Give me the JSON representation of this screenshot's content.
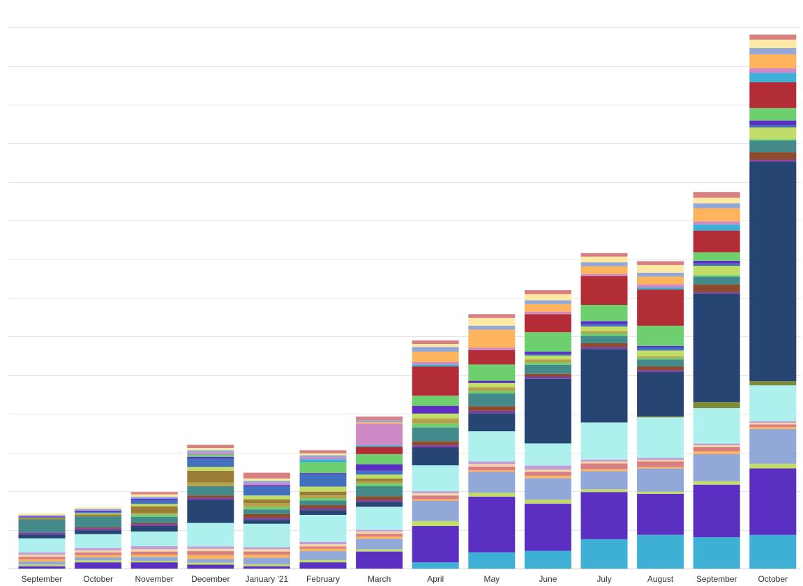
{
  "chart_data": {
    "type": "bar",
    "stacked": true,
    "grid": true,
    "legend": "none",
    "title": "",
    "xlabel": "",
    "ylabel": "",
    "categories": [
      "September",
      "October",
      "November",
      "December",
      "January '21",
      "February",
      "March",
      "April",
      "May",
      "June",
      "July",
      "August",
      "September",
      "October"
    ],
    "ylim": [
      0,
      14.2
    ],
    "series": [
      {
        "color": "#3eb0d5",
        "values": [
          0,
          0,
          0,
          0,
          0,
          0,
          0,
          0.16,
          0.42,
          0.46,
          0.76,
          0.87,
          0.81,
          0.87
        ]
      },
      {
        "color": "#5a2fc2",
        "values": [
          0.06,
          0.16,
          0.16,
          0.1,
          0.06,
          0.16,
          0.44,
          0.94,
          1.44,
          1.22,
          1.22,
          1.06,
          1.36,
          1.72
        ]
      },
      {
        "color": "#c2dd67",
        "values": [
          0.04,
          0.05,
          0.04,
          0.05,
          0.05,
          0.06,
          0.06,
          0.13,
          0.1,
          0.1,
          0.07,
          0.06,
          0.09,
          0.12
        ]
      },
      {
        "color": "#92a8d8",
        "values": [
          0.08,
          0.08,
          0.1,
          0.1,
          0.17,
          0.23,
          0.27,
          0.52,
          0.54,
          0.56,
          0.47,
          0.6,
          0.7,
          0.9
        ]
      },
      {
        "color": "#fdb45c",
        "values": [
          0.06,
          0.06,
          0.06,
          0.1,
          0.08,
          0.06,
          0.06,
          0.04,
          0.04,
          0.06,
          0.05,
          0.04,
          0.07,
          0.05
        ]
      },
      {
        "color": "#d87f82",
        "values": [
          0.07,
          0.07,
          0.08,
          0.1,
          0.08,
          0.06,
          0.07,
          0.1,
          0.1,
          0.1,
          0.15,
          0.14,
          0.11,
          0.07
        ]
      },
      {
        "color": "#f3d7a7",
        "values": [
          0.05,
          0.05,
          0.06,
          0.06,
          0.06,
          0.06,
          0.06,
          0.06,
          0.06,
          0.06,
          0.05,
          0.04,
          0.05,
          0.04
        ]
      },
      {
        "color": "#c49bd7",
        "values": [
          0.06,
          0.06,
          0.08,
          0.06,
          0.05,
          0.06,
          0.04,
          0.05,
          0.07,
          0.1,
          0.05,
          0.05,
          0.04,
          0.04
        ]
      },
      {
        "color": "#aef0ee",
        "values": [
          0.36,
          0.36,
          0.38,
          0.61,
          0.61,
          0.7,
          0.6,
          0.67,
          0.78,
          0.58,
          0.96,
          1.05,
          0.92,
          0.93
        ]
      },
      {
        "color": "#7d8c3b",
        "values": [
          0,
          0,
          0,
          0,
          0,
          0,
          0,
          0,
          0,
          0,
          0,
          0.03,
          0.16,
          0.11
        ]
      },
      {
        "color": "#264573",
        "values": [
          0.1,
          0.1,
          0.14,
          0.6,
          0.1,
          0.12,
          0.12,
          0.46,
          0.47,
          1.67,
          1.9,
          1.14,
          2.8,
          5.67
        ]
      },
      {
        "color": "#7c3fa6",
        "values": [
          0.05,
          0.05,
          0.05,
          0.05,
          0.05,
          0.05,
          0.05,
          0.06,
          0.06,
          0.06,
          0.05,
          0.05,
          0.04,
          0.05
        ]
      },
      {
        "color": "#8d4a2c",
        "values": [
          0,
          0.03,
          0.03,
          0.06,
          0.1,
          0.08,
          0.1,
          0.1,
          0.12,
          0.07,
          0.1,
          0.1,
          0.2,
          0.2
        ]
      },
      {
        "color": "#448a8a",
        "values": [
          0.34,
          0.28,
          0.16,
          0.24,
          0.12,
          0.12,
          0.26,
          0.36,
          0.33,
          0.23,
          0.19,
          0.18,
          0.2,
          0.3
        ]
      },
      {
        "color": "#6ecf6e",
        "values": [
          0,
          0,
          0.06,
          0,
          0.06,
          0.06,
          0.07,
          0.1,
          0.06,
          0.06,
          0.06,
          0.04,
          0.04,
          0.04
        ]
      },
      {
        "color": "#b5a14a",
        "values": [
          0,
          0,
          0.04,
          0.1,
          0.1,
          0.07,
          0.06,
          0.13,
          0.1,
          0.08,
          0.06,
          0.04,
          0,
          0
        ]
      },
      {
        "color": "#9a7c35",
        "values": [
          0.03,
          0.05,
          0.17,
          0.3,
          0.1,
          0.1,
          0.07,
          0,
          0,
          0,
          0,
          0,
          0,
          0
        ]
      },
      {
        "color": "#c2dd67",
        "values": [
          0.02,
          0.03,
          0.06,
          0.1,
          0.1,
          0.13,
          0.1,
          0.13,
          0.11,
          0.1,
          0.12,
          0.15,
          0.24,
          0.3
        ]
      },
      {
        "color": "#4470c0",
        "values": [
          0,
          0.03,
          0.1,
          0.22,
          0.24,
          0.32,
          0.1,
          0,
          0,
          0.04,
          0.06,
          0.08,
          0.06,
          0.06
        ]
      },
      {
        "color": "#5a2fc2",
        "values": [
          0.03,
          0.03,
          0.04,
          0.04,
          0.03,
          0.03,
          0.17,
          0.2,
          0.06,
          0.06,
          0.08,
          0.04,
          0.07,
          0.12
        ]
      },
      {
        "color": "#6ecf6e",
        "values": [
          0,
          0,
          0,
          0.06,
          0,
          0.28,
          0.26,
          0.26,
          0.42,
          0.5,
          0.42,
          0.52,
          0.22,
          0.32
        ]
      },
      {
        "color": "#b32d37",
        "values": [
          0,
          0,
          0,
          0,
          0,
          0,
          0.19,
          0.76,
          0.37,
          0.47,
          0.74,
          0.94,
          0.56,
          0.67
        ]
      },
      {
        "color": "#3eb0d5",
        "values": [
          0,
          0,
          0,
          0,
          0,
          0.08,
          0.04,
          0.05,
          0,
          0,
          0,
          0.05,
          0.16,
          0.24
        ]
      },
      {
        "color": "#cf89c7",
        "values": [
          0,
          0,
          0,
          0.05,
          0.05,
          0.05,
          0.56,
          0.06,
          0.06,
          0.06,
          0.06,
          0.08,
          0.08,
          0.12
        ]
      },
      {
        "color": "#fdb45c",
        "values": [
          0,
          0,
          0,
          0,
          0,
          0,
          0.04,
          0.27,
          0.47,
          0.2,
          0.2,
          0.2,
          0.34,
          0.36
        ]
      },
      {
        "color": "#92a8d8",
        "values": [
          0.03,
          0.05,
          0.05,
          0.06,
          0.06,
          0.05,
          0.05,
          0.12,
          0.1,
          0.1,
          0.1,
          0.1,
          0.13,
          0.16
        ]
      },
      {
        "color": "#fde9a3",
        "values": [
          0.05,
          0.04,
          0.06,
          0.06,
          0.06,
          0.05,
          0,
          0.08,
          0.2,
          0.16,
          0.15,
          0.2,
          0.14,
          0.22
        ]
      },
      {
        "color": "#d87f82",
        "values": [
          0,
          0,
          0.06,
          0.08,
          0.15,
          0.08,
          0.09,
          0.09,
          0.1,
          0.1,
          0.09,
          0.1,
          0.15,
          0.13
        ]
      }
    ]
  }
}
